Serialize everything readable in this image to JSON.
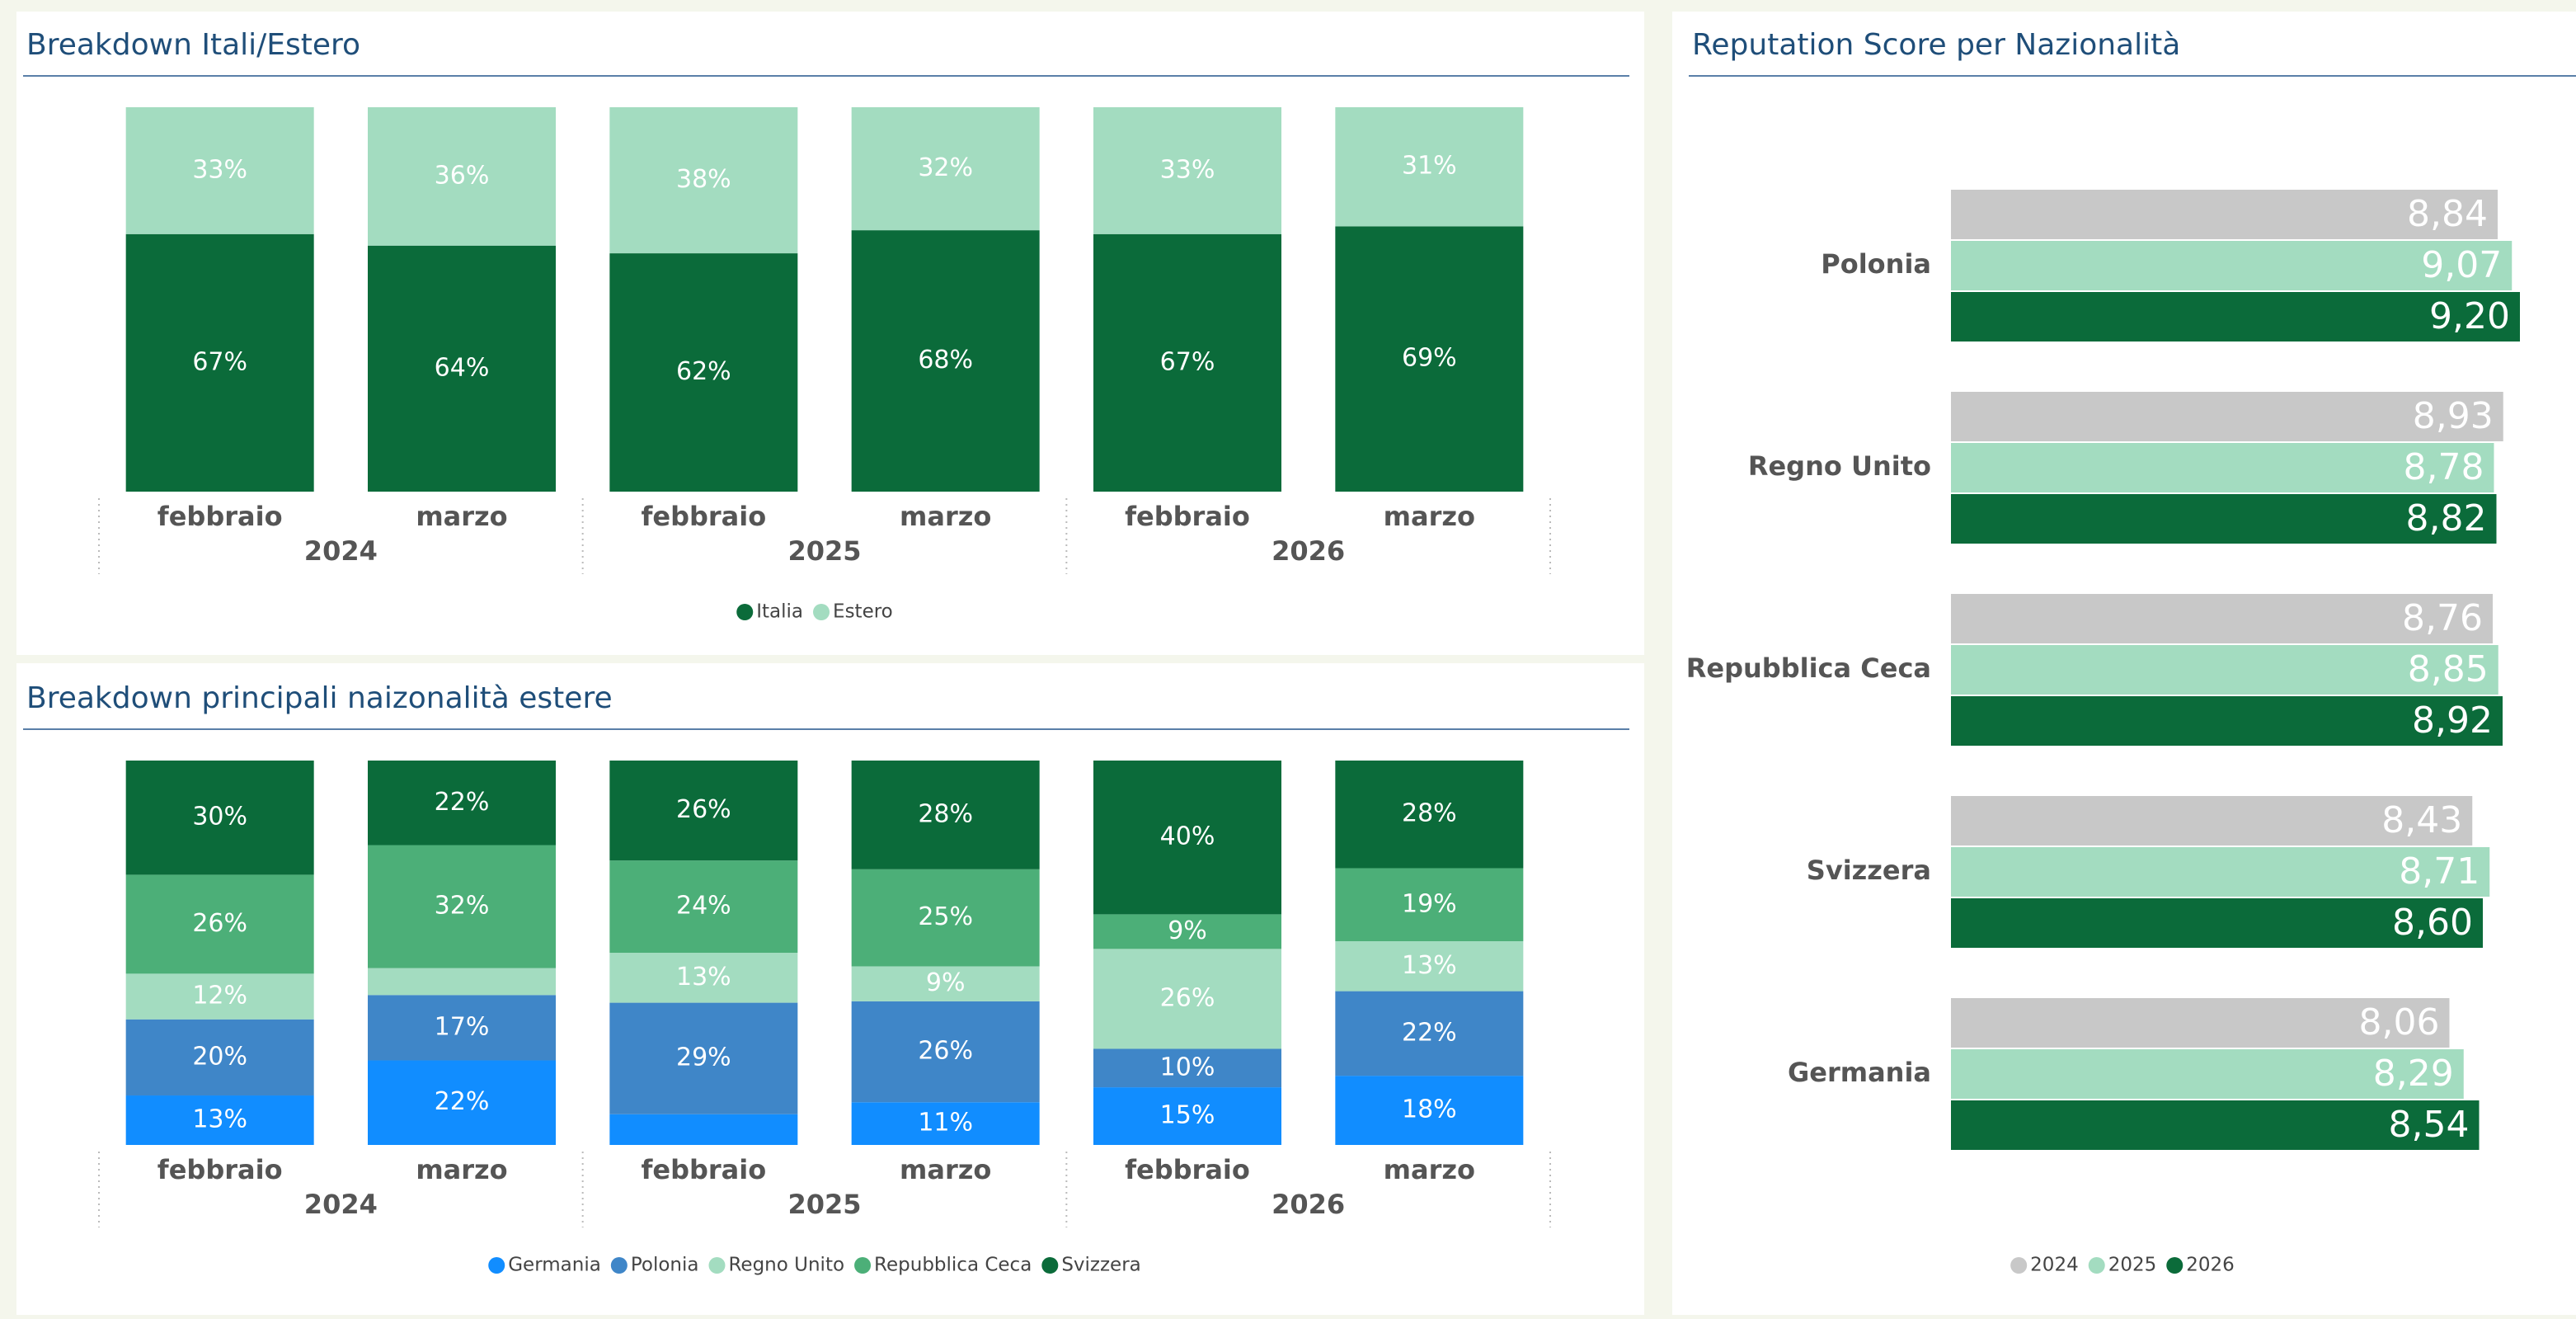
{
  "chart_data": [
    {
      "type": "bar",
      "stacked": true,
      "title": "Breakdown Itali/Estero",
      "categories": [
        "febbraio",
        "marzo",
        "febbraio",
        "marzo",
        "febbraio",
        "marzo"
      ],
      "x_groups": [
        "2024",
        "2025",
        "2026"
      ],
      "series": [
        {
          "name": "Italia",
          "color": "#0b6b3a",
          "values": [
            67,
            64,
            62,
            68,
            67,
            69
          ],
          "value_labels": [
            "67%",
            "64%",
            "62%",
            "68%",
            "67%",
            "69%"
          ]
        },
        {
          "name": "Estero",
          "color": "#a3dcc0",
          "values": [
            33,
            36,
            38,
            32,
            33,
            31
          ],
          "value_labels": [
            "33%",
            "36%",
            "38%",
            "32%",
            "33%",
            "31%"
          ]
        }
      ]
    },
    {
      "type": "bar",
      "stacked": true,
      "title": "Breakdown principali naizonalità estere",
      "categories": [
        "febbraio",
        "marzo",
        "febbraio",
        "marzo",
        "febbraio",
        "marzo"
      ],
      "x_groups": [
        "2024",
        "2025",
        "2026"
      ],
      "series": [
        {
          "name": "Germania",
          "color": "#118dff",
          "values": [
            13,
            22,
            8,
            11,
            15,
            18
          ],
          "value_labels": [
            "13%",
            "22%",
            null,
            "11%",
            "15%",
            "18%"
          ]
        },
        {
          "name": "Polonia",
          "color": "#3f86c8",
          "values": [
            20,
            17,
            29,
            26,
            10,
            22
          ],
          "value_labels": [
            "20%",
            "17%",
            "29%",
            "26%",
            "10%",
            "22%"
          ]
        },
        {
          "name": "Regno Unito",
          "color": "#a3dcc0",
          "values": [
            12,
            7,
            13,
            9,
            26,
            13
          ],
          "value_labels": [
            "12%",
            null,
            "13%",
            "9%",
            "26%",
            "13%"
          ]
        },
        {
          "name": "Repubblica Ceca",
          "color": "#4caf78",
          "values": [
            26,
            32,
            24,
            25,
            9,
            19
          ],
          "value_labels": [
            "26%",
            "32%",
            "24%",
            "25%",
            "9%",
            "19%"
          ]
        },
        {
          "name": "Svizzera",
          "color": "#0b6b3a",
          "values": [
            30,
            22,
            26,
            28,
            40,
            28
          ],
          "value_labels": [
            "30%",
            "22%",
            "26%",
            "28%",
            "40%",
            "28%"
          ]
        }
      ]
    },
    {
      "type": "bar",
      "horizontal": true,
      "title": "Reputation Score per Nazionalità",
      "categories": [
        "Polonia",
        "Regno Unito",
        "Repubblica Ceca",
        "Svizzera",
        "Germania"
      ],
      "series": [
        {
          "name": "2024",
          "color": "#c8c8c8",
          "values": [
            8.84,
            8.93,
            8.76,
            8.43,
            8.06
          ],
          "value_labels": [
            "8,84",
            "8,93",
            "8,76",
            "8,43",
            "8,06"
          ]
        },
        {
          "name": "2025",
          "color": "#a3dcc0",
          "values": [
            9.07,
            8.78,
            8.85,
            8.71,
            8.29
          ],
          "value_labels": [
            "9,07",
            "8,78",
            "8,85",
            "8,71",
            "8,29"
          ]
        },
        {
          "name": "2026",
          "color": "#0b6b3a",
          "values": [
            9.2,
            8.82,
            8.92,
            8.6,
            8.54
          ],
          "value_labels": [
            "9,20",
            "8,82",
            "8,92",
            "8,60",
            "8,54"
          ]
        }
      ]
    }
  ]
}
